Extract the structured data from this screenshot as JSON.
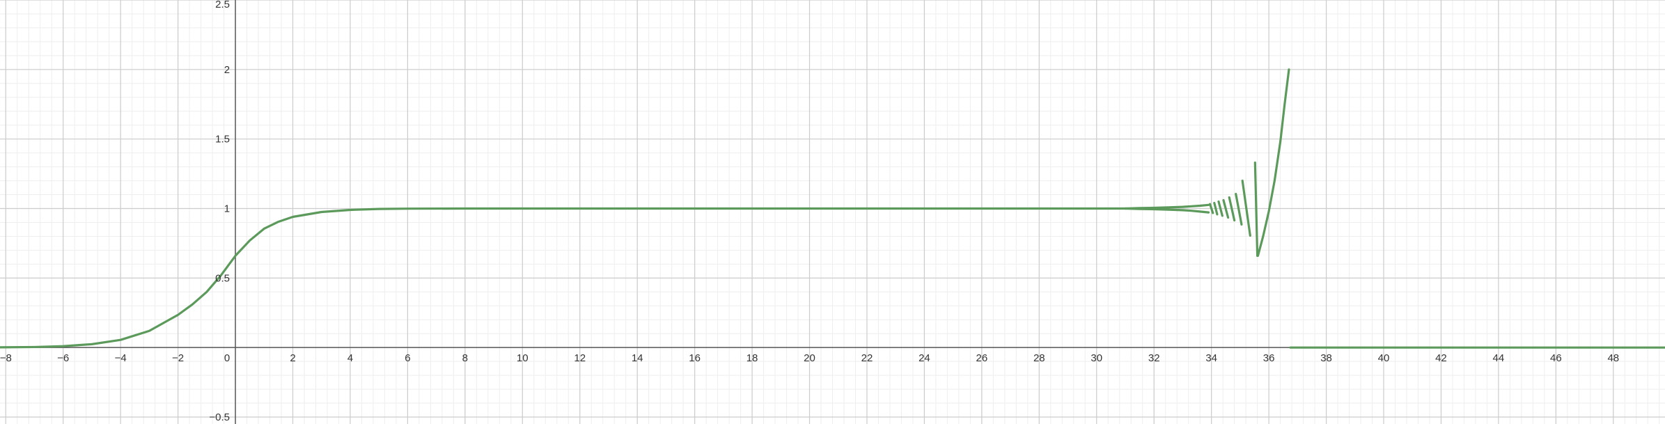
{
  "chart_data": {
    "type": "line",
    "title": "",
    "xlabel": "",
    "ylabel": "",
    "xlim": [
      -8.2,
      49.8
    ],
    "ylim": [
      -0.55,
      2.5
    ],
    "grid": true,
    "minor_grid": true,
    "x_ticks": [
      -8,
      -6,
      -4,
      -2,
      0,
      2,
      4,
      6,
      8,
      10,
      12,
      14,
      16,
      18,
      20,
      22,
      24,
      26,
      28,
      30,
      32,
      34,
      36,
      38,
      40,
      42,
      44,
      46,
      48
    ],
    "x_tick_labels": [
      "−8",
      "−6",
      "−4",
      "−2",
      "0",
      "2",
      "4",
      "6",
      "8",
      "10",
      "12",
      "14",
      "16",
      "18",
      "20",
      "22",
      "24",
      "26",
      "28",
      "30",
      "32",
      "34",
      "36",
      "38",
      "40",
      "42",
      "44",
      "46",
      "48"
    ],
    "y_ticks": [
      -0.5,
      0.5,
      1,
      1.5,
      2,
      2.5
    ],
    "y_tick_labels": [
      "−0.5",
      "0.5",
      "1",
      "1.5",
      "2",
      "2.5"
    ],
    "series": [
      {
        "color": "#5b9a5b",
        "segments": [
          [
            [
              -8.2,
              0.0015
            ],
            [
              -7,
              0.0038
            ],
            [
              -6,
              0.0095
            ],
            [
              -5,
              0.024
            ],
            [
              -4,
              0.055
            ],
            [
              -3,
              0.12
            ],
            [
              -2,
              0.235
            ],
            [
              -1.5,
              0.31
            ],
            [
              -1,
              0.4
            ],
            [
              -0.5,
              0.52
            ],
            [
              0,
              0.66
            ],
            [
              0.5,
              0.77
            ],
            [
              1,
              0.855
            ],
            [
              1.5,
              0.905
            ],
            [
              2,
              0.94
            ],
            [
              3,
              0.975
            ],
            [
              4,
              0.99
            ],
            [
              5,
              0.997
            ],
            [
              6,
              0.999
            ],
            [
              8,
              1.0
            ],
            [
              30,
              1.0
            ],
            [
              31,
              1.0
            ]
          ],
          [
            [
              31,
              1.0
            ],
            [
              31.5,
              1.003
            ],
            [
              32,
              1.005
            ],
            [
              32.5,
              1.008
            ],
            [
              33,
              1.012
            ],
            [
              33.3,
              1.016
            ],
            [
              33.6,
              1.02
            ],
            [
              33.9,
              1.026
            ]
          ],
          [
            [
              31,
              1.0
            ],
            [
              31.5,
              0.997
            ],
            [
              32,
              0.995
            ],
            [
              32.5,
              0.992
            ],
            [
              33,
              0.988
            ],
            [
              33.3,
              0.984
            ],
            [
              33.6,
              0.978
            ],
            [
              33.9,
              0.972
            ]
          ],
          [
            [
              33.95,
              1.032
            ],
            [
              34.05,
              0.968
            ]
          ],
          [
            [
              34.1,
              1.04
            ],
            [
              34.2,
              0.958
            ]
          ],
          [
            [
              34.25,
              1.05
            ],
            [
              34.38,
              0.948
            ]
          ],
          [
            [
              34.42,
              1.06
            ],
            [
              34.58,
              0.935
            ]
          ],
          [
            [
              34.62,
              1.08
            ],
            [
              34.8,
              0.915
            ]
          ],
          [
            [
              34.85,
              1.105
            ],
            [
              35.05,
              0.885
            ]
          ],
          [
            [
              35.08,
              1.2
            ],
            [
              35.35,
              0.805
            ]
          ],
          [
            [
              35.52,
              1.33
            ],
            [
              35.6,
              0.66
            ]
          ],
          [
            [
              35.62,
              0.66
            ],
            [
              35.8,
              0.8
            ],
            [
              36.0,
              0.98
            ],
            [
              36.2,
              1.2
            ],
            [
              36.4,
              1.48
            ],
            [
              36.55,
              1.75
            ],
            [
              36.7,
              2.0
            ]
          ],
          [
            [
              36.75,
              0.0
            ],
            [
              49.8,
              0.0
            ]
          ]
        ]
      }
    ]
  }
}
